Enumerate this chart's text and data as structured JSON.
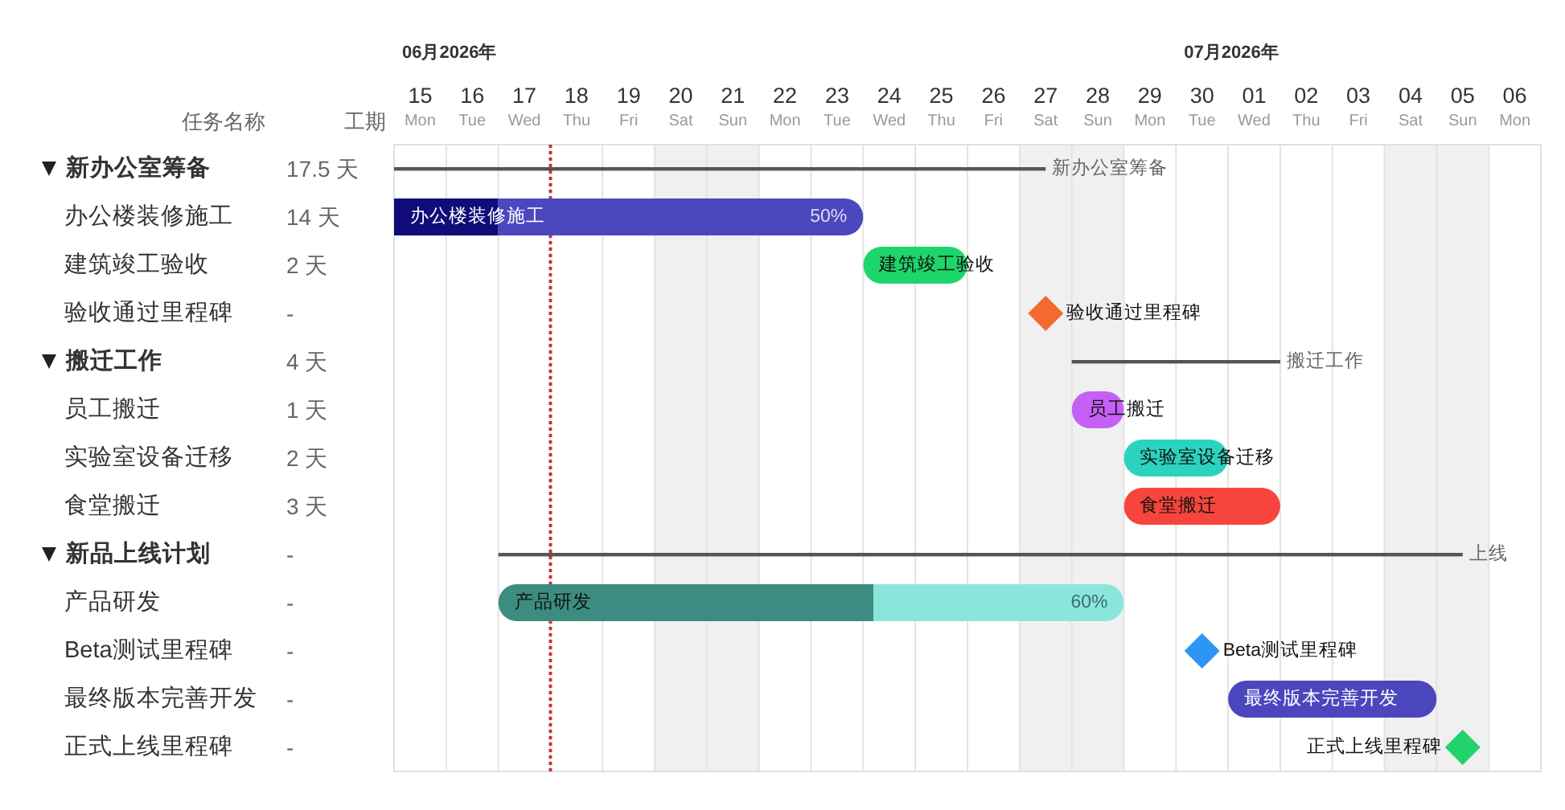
{
  "chart_data": {
    "type": "bar",
    "orientation": "horizontal",
    "ylabel": "任务名称",
    "xlabel": "06月2026年",
    "x2label": "07月2026年",
    "annotations": [
      "工期",
      {
        "text": "50%",
        "x": 24,
        "y": "办公楼装修施工"
      },
      {
        "text": "60%",
        "x": 29,
        "y": "产品研发"
      }
    ],
    "categories": [
      "新办公室筹备",
      "办公楼装修施工",
      "建筑竣工验收",
      "验收通过里程碑",
      "搬迁工作",
      "员工搬迁",
      "实验室设备迁移",
      "食堂搬迁",
      "新品上线计划",
      "产品研发",
      "Beta测试里程碑",
      "最终版本完善开发",
      "正式上线里程碑"
    ],
    "value_labels": [
      "17.5 天",
      "14 天",
      "2 天",
      "-",
      "4 天",
      "1 天",
      "2 天",
      "3 天",
      "-",
      "-",
      "-",
      "-",
      "-"
    ],
    "series": [
      {
        "line_style": "solid",
        "color": "#555555",
        "base": [
          15,
          null,
          null,
          null,
          28,
          null,
          null,
          null,
          17,
          null,
          null,
          null,
          null
        ],
        "values": [
          12.5,
          null,
          null,
          null,
          4,
          null,
          null,
          null,
          18.5,
          null,
          null,
          null,
          null
        ],
        "value_labels": [
          "新办公室筹备",
          null,
          null,
          null,
          "搬迁工作",
          null,
          null,
          null,
          "上线",
          null,
          null,
          null,
          null
        ]
      },
      {
        "colors": [
          null,
          "#100c78",
          null,
          null,
          null,
          null,
          null,
          null,
          null,
          "#3d8c81",
          null,
          null,
          null
        ],
        "base": [
          null,
          15,
          null,
          null,
          null,
          null,
          null,
          null,
          null,
          17,
          null,
          null,
          null
        ],
        "values": [
          null,
          2,
          null,
          null,
          null,
          null,
          null,
          null,
          null,
          7.2,
          null,
          null,
          null
        ],
        "value_labels": [
          null,
          "办公楼装修施工",
          null,
          null,
          null,
          null,
          null,
          null,
          null,
          "产品研发",
          null,
          null,
          null
        ]
      },
      {
        "colors": [
          null,
          "#4b47bf",
          "#1dd66b",
          null,
          null,
          "#c660f5",
          "#2bd3be",
          "#f7453d",
          null,
          "#8ae6dc",
          null,
          "#4b45be",
          null
        ],
        "base": [
          null,
          17,
          24,
          null,
          null,
          28,
          29,
          29,
          null,
          24.2,
          null,
          31,
          null
        ],
        "values": [
          null,
          7,
          2,
          null,
          null,
          1,
          2,
          3,
          null,
          4.8,
          null,
          4,
          null
        ],
        "value_labels": [
          null,
          null,
          "建筑竣工验收",
          null,
          null,
          "员工搬迁",
          "实验室设备迁移",
          "食堂搬迁",
          null,
          null,
          null,
          "最终版本完善开发",
          null
        ]
      },
      {
        "type": "scatter",
        "marker": "diamond",
        "colors": [
          null,
          null,
          null,
          "#f36a2e",
          null,
          null,
          null,
          null,
          null,
          null,
          "#2d96f5",
          null,
          "#22d36c"
        ],
        "values": [
          null,
          null,
          null,
          27.5,
          null,
          null,
          null,
          null,
          null,
          null,
          30.5,
          null,
          35.5
        ],
        "value_labels": [
          null,
          null,
          null,
          "验收通过里程碑",
          null,
          null,
          null,
          null,
          null,
          null,
          "Beta测试里程碑",
          null,
          "正式上线里程碑"
        ]
      }
    ],
    "xlim": [
      15,
      37
    ],
    "xticks": [
      {
        "value": 15,
        "label": null
      },
      {
        "value": 15.5,
        "label": "15\nMon"
      },
      {
        "value": 16,
        "label": null
      },
      {
        "value": 16.5,
        "label": "16\nTue"
      },
      {
        "value": 17,
        "label": null
      },
      {
        "value": 17.5,
        "label": "17\nWed"
      },
      {
        "value": 18,
        "label": null
      },
      {
        "value": 18.5,
        "label": "18\nThu"
      },
      {
        "value": 19,
        "label": null
      },
      {
        "value": 19.5,
        "label": "19\nFri"
      },
      {
        "value": 20,
        "label": null
      },
      {
        "value": 20.5,
        "label": "20\nSat"
      },
      {
        "value": 21,
        "label": null
      },
      {
        "value": 21.5,
        "label": "21\nSun"
      },
      {
        "value": 22,
        "label": null
      },
      {
        "value": 22.5,
        "label": "22\nMon"
      },
      {
        "value": 23,
        "label": null
      },
      {
        "value": 23.5,
        "label": "23\nTue"
      },
      {
        "value": 24,
        "label": null
      },
      {
        "value": 24.5,
        "label": "24\nWed"
      },
      {
        "value": 25,
        "label": null
      },
      {
        "value": 25.5,
        "label": "25\nThu"
      },
      {
        "value": 26,
        "label": null
      },
      {
        "value": 26.5,
        "label": "26\nFri"
      },
      {
        "value": 27,
        "label": null
      },
      {
        "value": 27.5,
        "label": "27\nSat"
      },
      {
        "value": 28,
        "label": null
      },
      {
        "value": 28.5,
        "label": "28\nSun"
      },
      {
        "value": 29,
        "label": null
      },
      {
        "value": 29.5,
        "label": "29\nMon"
      },
      {
        "value": 30,
        "label": null
      },
      {
        "value": 30.5,
        "label": "30\nTue"
      },
      {
        "value": 31,
        "label": null
      },
      {
        "value": 32,
        "label": null
      },
      {
        "value": 33,
        "label": null
      },
      {
        "value": 34,
        "label": null
      },
      {
        "value": 35,
        "label": null
      },
      {
        "value": 36,
        "label": null
      },
      {
        "value": 37,
        "label": null
      }
    ],
    "x2lim": [
      -15,
      7
    ],
    "x2ticks": [
      {
        "value": 1.5,
        "label": "01\nWed"
      },
      {
        "value": 2.5,
        "label": "02\nThu"
      },
      {
        "value": 3.5,
        "label": "03\nFri"
      },
      {
        "value": 4.5,
        "label": "04\nSat"
      },
      {
        "value": 5.5,
        "label": "05\nSun"
      },
      {
        "value": 6.5,
        "label": "06\nMon"
      }
    ],
    "grid": "x",
    "bands": [
      {
        "axis": "x",
        "from": 20,
        "to": 22,
        "color": "#f0f0f0"
      },
      {
        "axis": "x",
        "from": 27,
        "to": 29,
        "color": "#f0f0f0"
      },
      {
        "axis": "x",
        "from": 34,
        "to": 36,
        "color": "#f0f0f0"
      }
    ],
    "ref_lines": [
      {
        "axis": "x",
        "value": 18,
        "color": "#cc3333",
        "line_style": "dotted"
      }
    ]
  }
}
